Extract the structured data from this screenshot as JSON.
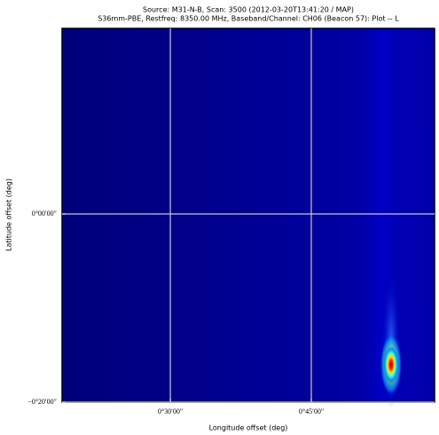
{
  "chart_data": {
    "type": "heatmap",
    "title": "Source: M31-N-B, Scan: 3500 (2012-03-20T13:41:20 / MAP)",
    "subtitle": "S36mm-PBE, Restfreq: 8350.00 MHz, Baseband/Channel: CH06 (Beacon 57): Plot -- L",
    "xlabel": "Longitude offset (deg)",
    "ylabel": "Latitude offset (deg)",
    "xlim": [
      0.308,
      0.9686
    ],
    "ylim": [
      -0.3333,
      0.3286
    ],
    "xticks": [
      {
        "value": 0.5,
        "label": "0°30′00″"
      },
      {
        "value": 0.75,
        "label": "0°45′00″"
      }
    ],
    "yticks": [
      {
        "value": -0.3333,
        "label": "−0°20′00″"
      },
      {
        "value": 0,
        "label": "0°00′00″"
      }
    ],
    "grid": true,
    "peak": {
      "x": 0.8915,
      "y": -0.267
    }
  }
}
